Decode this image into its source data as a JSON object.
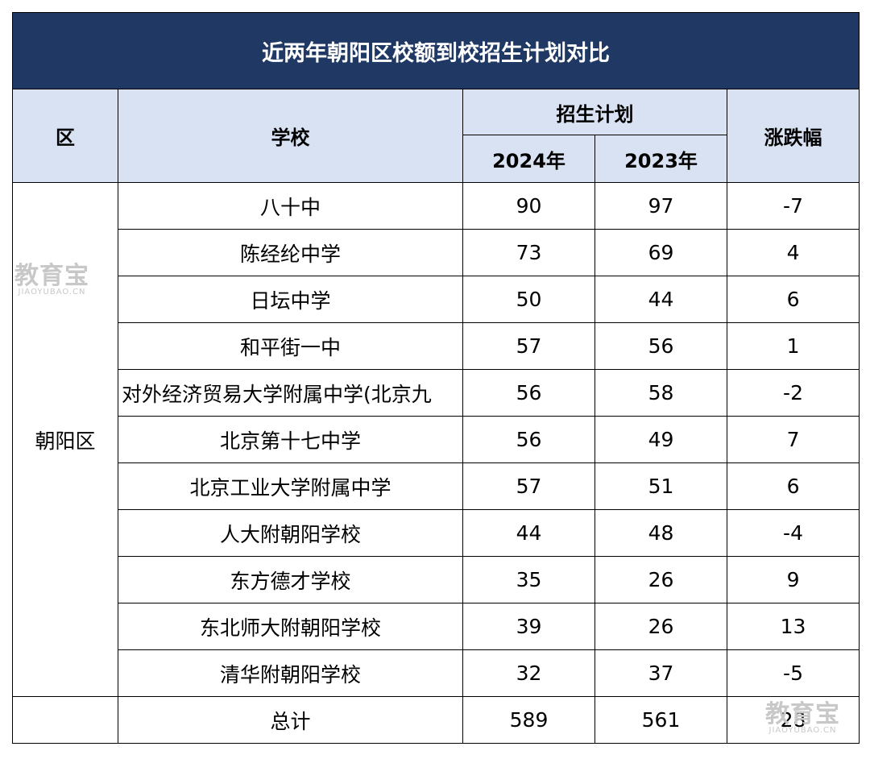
{
  "table": {
    "title": "近两年朝阳区校额到校招生计划对比",
    "headers": {
      "district": "区",
      "school": "学校",
      "plan": "招生计划",
      "year_a": "2024年",
      "year_b": "2023年",
      "change": "涨跌幅"
    },
    "district_name": "朝阳区",
    "rows": [
      {
        "school": "八十中",
        "y2024": "90",
        "y2023": "97",
        "change": "-7"
      },
      {
        "school": "陈经纶中学",
        "y2024": "73",
        "y2023": "69",
        "change": "4"
      },
      {
        "school": "日坛中学",
        "y2024": "50",
        "y2023": "44",
        "change": "6"
      },
      {
        "school": "和平街一中",
        "y2024": "57",
        "y2023": "56",
        "change": "1"
      },
      {
        "school": "对外经济贸易大学附属中学(北京九",
        "y2024": "56",
        "y2023": "58",
        "change": "-2"
      },
      {
        "school": "北京第十七中学",
        "y2024": "56",
        "y2023": "49",
        "change": "7"
      },
      {
        "school": "北京工业大学附属中学",
        "y2024": "57",
        "y2023": "51",
        "change": "6"
      },
      {
        "school": "人大附朝阳学校",
        "y2024": "44",
        "y2023": "48",
        "change": "-4"
      },
      {
        "school": "东方德才学校",
        "y2024": "35",
        "y2023": "26",
        "change": "9"
      },
      {
        "school": "东北师大附朝阳学校",
        "y2024": "39",
        "y2023": "26",
        "change": "13"
      },
      {
        "school": "清华附朝阳学校",
        "y2024": "32",
        "y2023": "37",
        "change": "-5"
      }
    ],
    "total": {
      "label": "总计",
      "y2024": "589",
      "y2023": "561",
      "change": "28"
    }
  },
  "watermark": {
    "logo_text": "教育宝",
    "domain_text": "JIAOYUBAO.CN"
  },
  "colors": {
    "title_bg": "#1f3864",
    "header_bg": "#d9e2f3"
  }
}
